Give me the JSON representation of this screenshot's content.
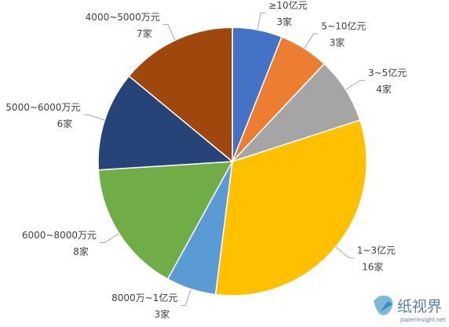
{
  "chart_data": {
    "type": "pie",
    "categories": [
      "≥10亿元",
      "5~10亿元",
      "3~5亿元",
      "1~3亿元",
      "8000万~1亿元",
      "6000~8000万元",
      "5000~6000万元",
      "4000~5000万元"
    ],
    "values": [
      3,
      3,
      4,
      16,
      3,
      8,
      6,
      7
    ],
    "value_labels": [
      "3家",
      "3家",
      "4家",
      "16家",
      "3家",
      "8家",
      "6家",
      "7家"
    ],
    "colors": [
      "#4472c4",
      "#ed7d31",
      "#a5a5a5",
      "#ffc000",
      "#5b9bd5",
      "#70ad47",
      "#264478",
      "#9e480e"
    ]
  },
  "watermark": {
    "text": "纸视界",
    "url": "paperinsight.net"
  }
}
